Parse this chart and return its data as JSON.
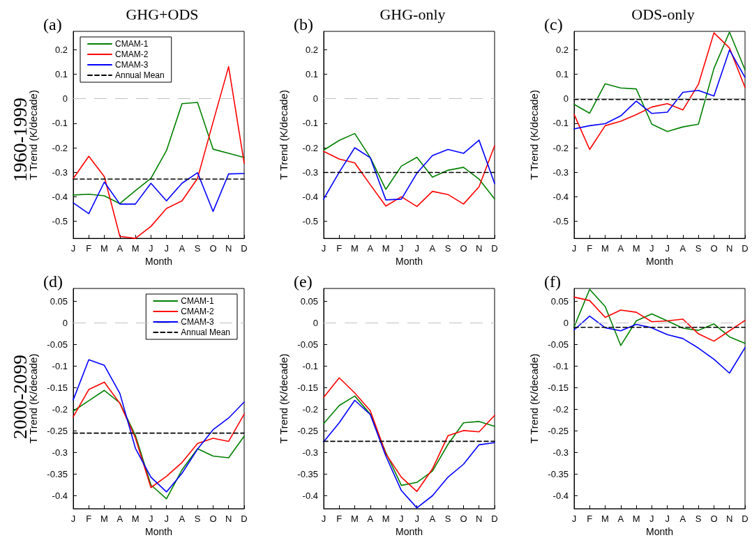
{
  "chart_data": [
    {
      "type": "line",
      "title": "GHG+ODS",
      "xlabel": "Month",
      "ylabel": "T Trend (K/decade)",
      "annotations": [
        "(a)",
        "1960-1999"
      ],
      "categories": [
        "J",
        "F",
        "M",
        "A",
        "M",
        "J",
        "J",
        "A",
        "S",
        "O",
        "N",
        "D"
      ],
      "ylim": [
        -0.57,
        0.275
      ],
      "yticks": [
        -0.5,
        -0.4,
        -0.3,
        -0.2,
        -0.1,
        0,
        0.1,
        0.2
      ],
      "grid": false,
      "legend": "top left",
      "marker": "none",
      "ref_lines": [
        {
          "axis": "y",
          "value": 0,
          "color": "#c0c0c0",
          "line_style": "dashed"
        }
      ],
      "series": [
        {
          "name": "CMAM-1",
          "color": "#008000",
          "values": [
            -0.393,
            -0.39,
            -0.396,
            -0.428,
            -0.375,
            -0.325,
            -0.212,
            -0.02,
            -0.015,
            -0.206,
            -0.223,
            -0.24
          ]
        },
        {
          "name": "CMAM-2",
          "color": "#ff0000",
          "values": [
            -0.326,
            -0.235,
            -0.318,
            -0.562,
            -0.57,
            -0.521,
            -0.448,
            -0.417,
            -0.325,
            -0.095,
            0.131,
            -0.263
          ]
        },
        {
          "name": "CMAM-3",
          "color": "#0000ff",
          "values": [
            -0.425,
            -0.469,
            -0.34,
            -0.43,
            -0.43,
            -0.345,
            -0.417,
            -0.345,
            -0.302,
            -0.46,
            -0.307,
            -0.305
          ]
        },
        {
          "name": "Annual Mean",
          "color": "#000000",
          "line_style": "dashed",
          "values": [
            -0.328,
            -0.328,
            -0.328,
            -0.328,
            -0.328,
            -0.328,
            -0.328,
            -0.328,
            -0.328,
            -0.328,
            -0.328,
            -0.328
          ]
        }
      ]
    },
    {
      "type": "line",
      "title": "GHG-only",
      "xlabel": "Month",
      "ylabel": "T Trend (K/decade)",
      "annotations": [
        "(b)"
      ],
      "categories": [
        "J",
        "F",
        "M",
        "A",
        "M",
        "J",
        "J",
        "A",
        "S",
        "O",
        "N",
        "D"
      ],
      "ylim": [
        -0.57,
        0.275
      ],
      "yticks": [
        -0.5,
        -0.4,
        -0.3,
        -0.2,
        -0.1,
        0,
        0.1,
        0.2
      ],
      "grid": false,
      "marker": "none",
      "ref_lines": [
        {
          "axis": "y",
          "value": 0,
          "color": "#c0c0c0",
          "line_style": "dashed"
        }
      ],
      "series": [
        {
          "color": "#008000",
          "values": [
            -0.21,
            -0.17,
            -0.142,
            -0.24,
            -0.37,
            -0.275,
            -0.239,
            -0.32,
            -0.292,
            -0.28,
            -0.328,
            -0.409
          ]
        },
        {
          "color": "#ff0000",
          "values": [
            -0.215,
            -0.246,
            -0.262,
            -0.351,
            -0.438,
            -0.4,
            -0.44,
            -0.378,
            -0.391,
            -0.43,
            -0.359,
            -0.192
          ]
        },
        {
          "color": "#0000ff",
          "values": [
            -0.409,
            -0.3,
            -0.2,
            -0.241,
            -0.413,
            -0.41,
            -0.304,
            -0.232,
            -0.207,
            -0.223,
            -0.169,
            -0.346
          ]
        },
        {
          "color": "#000000",
          "line_style": "dashed",
          "values": [
            -0.301,
            -0.301,
            -0.301,
            -0.301,
            -0.301,
            -0.301,
            -0.301,
            -0.301,
            -0.301,
            -0.301,
            -0.301,
            -0.301
          ]
        }
      ]
    },
    {
      "type": "line",
      "title": "ODS-only",
      "xlabel": "Month",
      "ylabel": "T Trend (K/decade)",
      "annotations": [
        "(c)"
      ],
      "categories": [
        "J",
        "F",
        "M",
        "A",
        "M",
        "J",
        "J",
        "A",
        "S",
        "O",
        "N",
        "D"
      ],
      "ylim": [
        -0.57,
        0.275
      ],
      "yticks": [
        -0.5,
        -0.4,
        -0.3,
        -0.2,
        -0.1,
        0,
        0.1,
        0.2
      ],
      "grid": false,
      "marker": "none",
      "ref_lines": [
        {
          "axis": "y",
          "value": 0,
          "color": "#c0c0c0",
          "line_style": "solid"
        }
      ],
      "series": [
        {
          "color": "#008000",
          "values": [
            -0.023,
            -0.059,
            0.061,
            0.044,
            0.04,
            -0.104,
            -0.134,
            -0.115,
            -0.104,
            0.124,
            0.272,
            0.118
          ]
        },
        {
          "color": "#ff0000",
          "values": [
            -0.064,
            -0.207,
            -0.11,
            -0.092,
            -0.065,
            -0.034,
            -0.02,
            -0.046,
            0.059,
            0.269,
            0.207,
            0.046
          ]
        },
        {
          "color": "#0000ff",
          "values": [
            -0.123,
            -0.11,
            -0.102,
            -0.07,
            -0.01,
            -0.06,
            -0.055,
            0.026,
            0.034,
            0.011,
            0.199,
            0.087
          ]
        },
        {
          "color": "#000000",
          "line_style": "dashed",
          "values": [
            -0.003,
            -0.003,
            -0.003,
            -0.003,
            -0.003,
            -0.003,
            -0.003,
            -0.003,
            -0.003,
            -0.003,
            -0.003,
            -0.003
          ]
        }
      ]
    },
    {
      "type": "line",
      "xlabel": "Month",
      "ylabel": "T Trend (K/decade)",
      "annotations": [
        "(d)",
        "2000-2099"
      ],
      "categories": [
        "J",
        "F",
        "M",
        "A",
        "M",
        "J",
        "J",
        "A",
        "S",
        "O",
        "N",
        "D"
      ],
      "ylim": [
        -0.43,
        0.08
      ],
      "yticks": [
        -0.4,
        -0.35,
        -0.3,
        -0.25,
        -0.2,
        -0.15,
        -0.1,
        -0.05,
        0,
        0.05
      ],
      "grid": false,
      "legend": "top right",
      "marker": "none",
      "ref_lines": [
        {
          "axis": "y",
          "value": 0,
          "color": "#c0c0c0",
          "line_style": "dashed"
        }
      ],
      "series": [
        {
          "name": "CMAM-1",
          "color": "#008000",
          "values": [
            -0.204,
            -0.18,
            -0.156,
            -0.185,
            -0.26,
            -0.375,
            -0.407,
            -0.34,
            -0.291,
            -0.308,
            -0.312,
            -0.262
          ]
        },
        {
          "name": "CMAM-2",
          "color": "#ff0000",
          "values": [
            -0.217,
            -0.154,
            -0.137,
            -0.186,
            -0.266,
            -0.381,
            -0.355,
            -0.323,
            -0.279,
            -0.267,
            -0.274,
            -0.211
          ]
        },
        {
          "name": "CMAM-3",
          "color": "#0000ff",
          "values": [
            -0.178,
            -0.085,
            -0.098,
            -0.163,
            -0.29,
            -0.357,
            -0.391,
            -0.348,
            -0.292,
            -0.247,
            -0.22,
            -0.183
          ]
        },
        {
          "name": "Annual Mean",
          "color": "#000000",
          "line_style": "dashed",
          "values": [
            -0.255,
            -0.255,
            -0.255,
            -0.255,
            -0.255,
            -0.255,
            -0.255,
            -0.255,
            -0.255,
            -0.255,
            -0.255,
            -0.255
          ]
        }
      ]
    },
    {
      "type": "line",
      "xlabel": "Month",
      "ylabel": "T Trend (K/decade)",
      "annotations": [
        "(e)"
      ],
      "categories": [
        "J",
        "F",
        "M",
        "A",
        "M",
        "J",
        "J",
        "A",
        "S",
        "O",
        "N",
        "D"
      ],
      "ylim": [
        -0.43,
        0.08
      ],
      "yticks": [
        -0.4,
        -0.35,
        -0.3,
        -0.25,
        -0.2,
        -0.15,
        -0.1,
        -0.05,
        0,
        0.05
      ],
      "grid": false,
      "marker": "none",
      "ref_lines": [
        {
          "axis": "y",
          "value": 0,
          "color": "#c0c0c0",
          "line_style": "dashed"
        }
      ],
      "series": [
        {
          "color": "#008000",
          "values": [
            -0.233,
            -0.191,
            -0.169,
            -0.211,
            -0.3,
            -0.376,
            -0.369,
            -0.343,
            -0.281,
            -0.231,
            -0.228,
            -0.239
          ]
        },
        {
          "color": "#ff0000",
          "values": [
            -0.172,
            -0.127,
            -0.162,
            -0.203,
            -0.303,
            -0.357,
            -0.39,
            -0.338,
            -0.261,
            -0.249,
            -0.252,
            -0.214
          ]
        },
        {
          "color": "#0000ff",
          "values": [
            -0.275,
            -0.231,
            -0.179,
            -0.212,
            -0.308,
            -0.388,
            -0.428,
            -0.4,
            -0.357,
            -0.327,
            -0.282,
            -0.277
          ]
        },
        {
          "color": "#000000",
          "line_style": "dashed",
          "values": [
            -0.274,
            -0.274,
            -0.274,
            -0.274,
            -0.274,
            -0.274,
            -0.274,
            -0.274,
            -0.274,
            -0.274,
            -0.274,
            -0.274
          ]
        }
      ]
    },
    {
      "type": "line",
      "xlabel": "Month",
      "ylabel": "T Trend (K/decade)",
      "annotations": [
        "(f)"
      ],
      "categories": [
        "J",
        "F",
        "M",
        "A",
        "M",
        "J",
        "J",
        "A",
        "S",
        "O",
        "N",
        "D"
      ],
      "ylim": [
        -0.43,
        0.08
      ],
      "yticks": [
        -0.4,
        -0.35,
        -0.3,
        -0.25,
        -0.2,
        -0.15,
        -0.1,
        -0.05,
        0,
        0.05
      ],
      "grid": false,
      "marker": "none",
      "ref_lines": [
        {
          "axis": "y",
          "value": 0,
          "color": "#c0c0c0",
          "line_style": "dashed"
        }
      ],
      "series": [
        {
          "color": "#008000",
          "values": [
            -0.009,
            0.078,
            0.038,
            -0.052,
            0.005,
            0.021,
            0.005,
            -0.012,
            -0.017,
            -0.002,
            -0.032,
            -0.047
          ]
        },
        {
          "color": "#ff0000",
          "values": [
            0.06,
            0.052,
            0.013,
            0.03,
            0.025,
            0.003,
            0.005,
            0.009,
            -0.025,
            -0.042,
            -0.018,
            0.006
          ]
        },
        {
          "color": "#0000ff",
          "values": [
            -0.016,
            0.016,
            -0.011,
            -0.018,
            -0.003,
            -0.011,
            -0.027,
            -0.036,
            -0.058,
            -0.084,
            -0.116,
            -0.057
          ]
        },
        {
          "color": "#000000",
          "line_style": "dashed",
          "values": [
            -0.01,
            -0.01,
            -0.01,
            -0.01,
            -0.01,
            -0.01,
            -0.01,
            -0.01,
            -0.01,
            -0.01,
            -0.01,
            -0.01
          ]
        }
      ]
    }
  ]
}
